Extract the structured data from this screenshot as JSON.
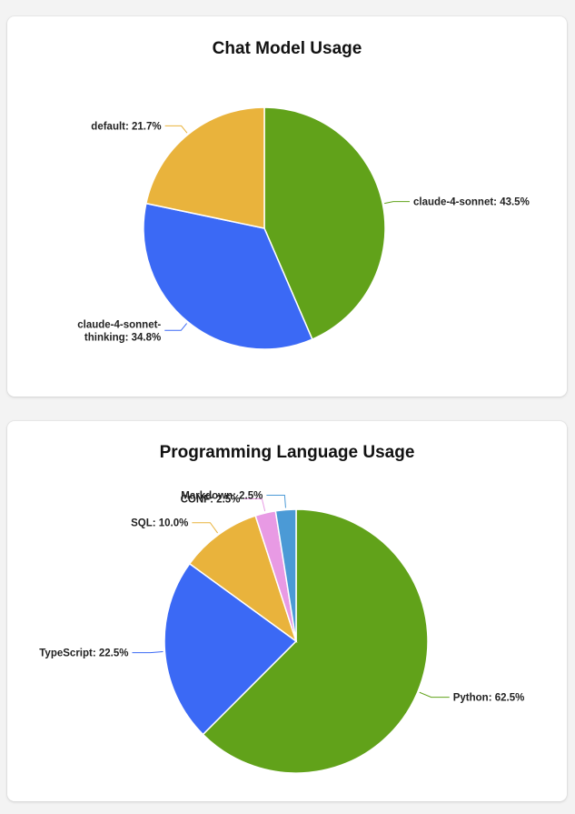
{
  "chart_data": [
    {
      "type": "pie",
      "title": "Chat Model Usage",
      "slices": [
        {
          "name": "claude-4-sonnet",
          "value": 43.5,
          "color": "#61a21a",
          "label_lines": [
            "claude-4-sonnet: 43.5%"
          ]
        },
        {
          "name": "claude-4-sonnet-thinking",
          "value": 34.8,
          "color": "#3b69f5",
          "label_lines": [
            "claude-4-sonnet-",
            "thinking: 34.8%"
          ]
        },
        {
          "name": "default",
          "value": 21.7,
          "color": "#e9b33c",
          "label_lines": [
            "default: 21.7%"
          ]
        }
      ]
    },
    {
      "type": "pie",
      "title": "Programming Language Usage",
      "slices": [
        {
          "name": "Python",
          "value": 62.5,
          "color": "#61a21a",
          "label_lines": [
            "Python: 62.5%"
          ]
        },
        {
          "name": "TypeScript",
          "value": 22.5,
          "color": "#3b69f5",
          "label_lines": [
            "TypeScript: 22.5%"
          ]
        },
        {
          "name": "SQL",
          "value": 10.0,
          "color": "#e9b33c",
          "label_lines": [
            "SQL: 10.0%"
          ]
        },
        {
          "name": "CONF",
          "value": 2.5,
          "color": "#e89ae4",
          "label_lines": [
            "CONF: 2.5%"
          ]
        },
        {
          "name": "Markdown",
          "value": 2.5,
          "color": "#4b9ad6",
          "label_lines": [
            "Markdown: 2.5%"
          ]
        }
      ]
    }
  ]
}
